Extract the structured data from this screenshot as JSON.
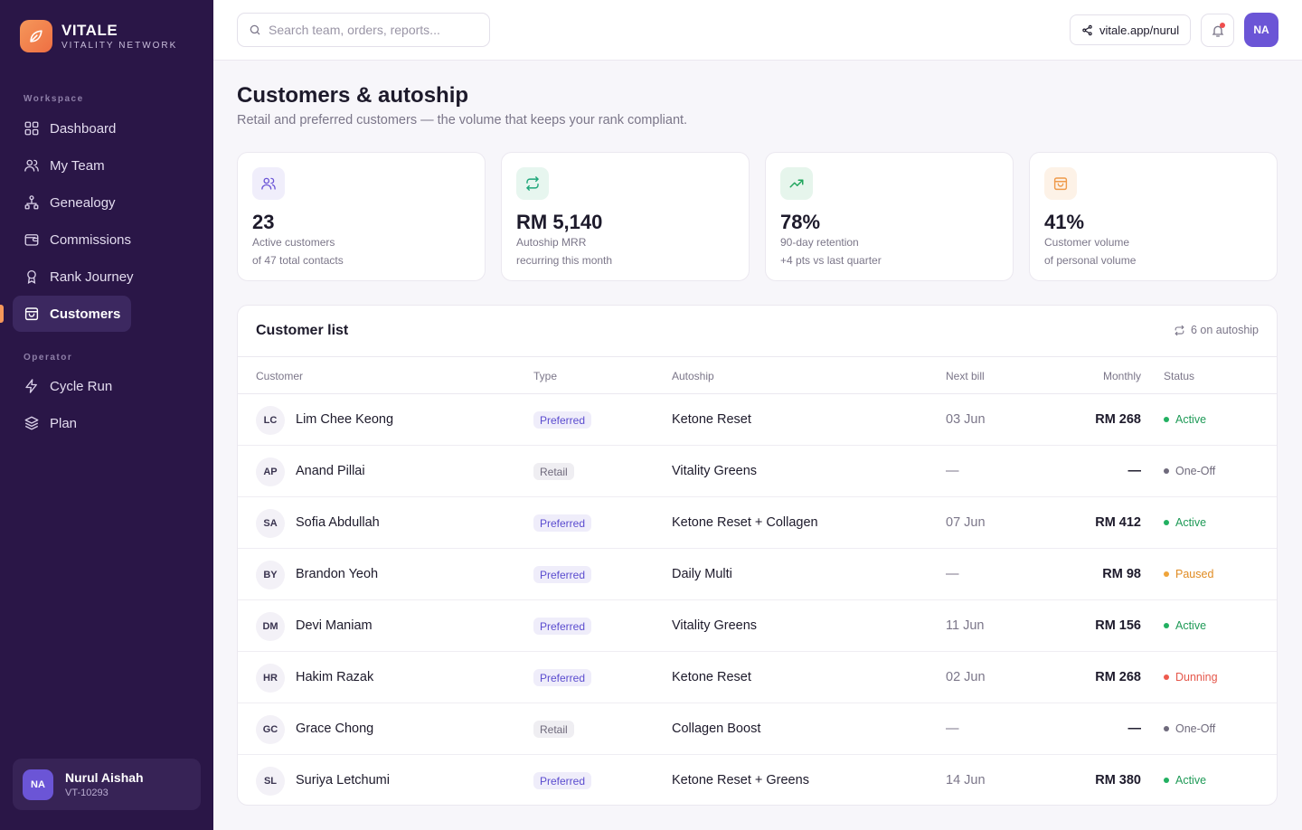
{
  "brand": {
    "name": "VITALE",
    "sub": "VITALITY NETWORK"
  },
  "sidebar": {
    "workspace_label": "Workspace",
    "operator_label": "Operator",
    "items": [
      {
        "label": "Dashboard",
        "icon": "grid-icon"
      },
      {
        "label": "My Team",
        "icon": "users-icon"
      },
      {
        "label": "Genealogy",
        "icon": "tree-icon"
      },
      {
        "label": "Commissions",
        "icon": "wallet-icon"
      },
      {
        "label": "Rank Journey",
        "icon": "award-icon"
      },
      {
        "label": "Customers",
        "icon": "bag-icon",
        "active": true
      },
      {
        "label": "Cycle Run",
        "icon": "bolt-icon"
      },
      {
        "label": "Plan",
        "icon": "layers-icon"
      }
    ],
    "user": {
      "initials": "NA",
      "name": "Nurul Aishah",
      "id": "VT-10293"
    }
  },
  "topbar": {
    "search_placeholder": "Search team, orders, reports...",
    "share_link": "vitale.app/nurul",
    "avatar_initials": "NA"
  },
  "page": {
    "title": "Customers & autoship",
    "subtitle": "Retail and preferred customers — the volume that keeps your rank compliant."
  },
  "kpis": [
    {
      "value": "23",
      "label": "Active customers",
      "sub": "of 47 total contacts",
      "icon": "users-icon",
      "color": "#6b55d6"
    },
    {
      "value": "RM 5,140",
      "label": "Autoship MRR",
      "sub": "recurring this month",
      "icon": "repeat-icon",
      "color": "#1fa67a"
    },
    {
      "value": "78%",
      "label": "90-day retention",
      "sub": "+4 pts vs last quarter",
      "icon": "trending-up-icon",
      "color": "#22a65e"
    },
    {
      "value": "41%",
      "label": "Customer volume",
      "sub": "of personal volume",
      "icon": "bag-icon",
      "color": "#ef9a4a"
    }
  ],
  "list": {
    "title": "Customer list",
    "meta": "6 on autoship",
    "columns": {
      "customer": "Customer",
      "type": "Type",
      "autoship": "Autoship",
      "next_bill": "Next bill",
      "monthly": "Monthly",
      "status": "Status"
    },
    "rows": [
      {
        "initials": "LC",
        "name": "Lim Chee Keong",
        "type": "Preferred",
        "autoship": "Ketone Reset",
        "next_bill": "03 Jun",
        "monthly": "RM 268",
        "status": "Active"
      },
      {
        "initials": "AP",
        "name": "Anand Pillai",
        "type": "Retail",
        "autoship": "Vitality Greens",
        "next_bill": "—",
        "monthly": "—",
        "status": "One-Off"
      },
      {
        "initials": "SA",
        "name": "Sofia Abdullah",
        "type": "Preferred",
        "autoship": "Ketone Reset + Collagen",
        "next_bill": "07 Jun",
        "monthly": "RM 412",
        "status": "Active"
      },
      {
        "initials": "BY",
        "name": "Brandon Yeoh",
        "type": "Preferred",
        "autoship": "Daily Multi",
        "next_bill": "—",
        "monthly": "RM 98",
        "status": "Paused"
      },
      {
        "initials": "DM",
        "name": "Devi Maniam",
        "type": "Preferred",
        "autoship": "Vitality Greens",
        "next_bill": "11 Jun",
        "monthly": "RM 156",
        "status": "Active"
      },
      {
        "initials": "HR",
        "name": "Hakim Razak",
        "type": "Preferred",
        "autoship": "Ketone Reset",
        "next_bill": "02 Jun",
        "monthly": "RM 268",
        "status": "Dunning"
      },
      {
        "initials": "GC",
        "name": "Grace Chong",
        "type": "Retail",
        "autoship": "Collagen Boost",
        "next_bill": "—",
        "monthly": "—",
        "status": "One-Off"
      },
      {
        "initials": "SL",
        "name": "Suriya Letchumi",
        "type": "Preferred",
        "autoship": "Ketone Reset + Greens",
        "next_bill": "14 Jun",
        "monthly": "RM 380",
        "status": "Active"
      }
    ]
  }
}
